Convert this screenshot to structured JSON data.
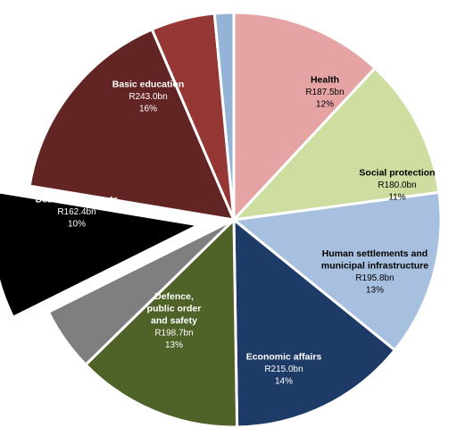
{
  "chart_data": {
    "type": "pie",
    "title": "",
    "slices": [
      {
        "label": [
          "Health"
        ],
        "amount": "R187.5bn",
        "percent": "12%",
        "value": 12,
        "color": "#E6A3A3",
        "text_color": "#000000",
        "exploded": false
      },
      {
        "label": [
          "Social protection"
        ],
        "amount": "R180.0bn",
        "percent": "11%",
        "value": 11,
        "color": "#CEDDA0",
        "text_color": "#000000",
        "exploded": false
      },
      {
        "label": [
          "Human settlements and",
          "municipal infrastructure"
        ],
        "amount": "R195.8bn",
        "percent": "13%",
        "value": 13,
        "color": "#A8C0E0",
        "text_color": "#000000",
        "exploded": false
      },
      {
        "label": [
          "Economic affairs"
        ],
        "amount": "R215.0bn",
        "percent": "14%",
        "value": 14,
        "color": "#1E3A66",
        "text_color": "#ffffff",
        "exploded": false
      },
      {
        "label": [
          "Defence,",
          "public order",
          "and safety"
        ],
        "amount": "R198.7bn",
        "percent": "13%",
        "value": 13,
        "color": "#4F6228",
        "text_color": "#ffffff",
        "exploded": false
      },
      {
        "label": [],
        "amount": "",
        "percent": "",
        "value": 5,
        "color": "#7F7F7F",
        "text_color": "#ffffff",
        "exploded": false
      },
      {
        "label": [
          "Debt service costs"
        ],
        "amount": "R162.4bn",
        "percent": "10%",
        "value": 10,
        "color": "#000000",
        "text_color": "#ffffff",
        "exploded": true
      },
      {
        "label": [
          "Basic education"
        ],
        "amount": "R243.0bn",
        "percent": "16%",
        "value": 16,
        "color": "#632523",
        "text_color": "#ffffff",
        "exploded": false
      },
      {
        "label": [],
        "amount": "",
        "percent": "",
        "value": 5,
        "color": "#953735",
        "text_color": "#ffffff",
        "exploded": false
      },
      {
        "label": [],
        "amount": "",
        "percent": "",
        "value": 1.5,
        "color": "#95B3D7",
        "text_color": "#000000",
        "exploded": false
      }
    ],
    "start_at": "12 o'clock",
    "direction": "clockwise",
    "separator_color": "#ffffff"
  }
}
